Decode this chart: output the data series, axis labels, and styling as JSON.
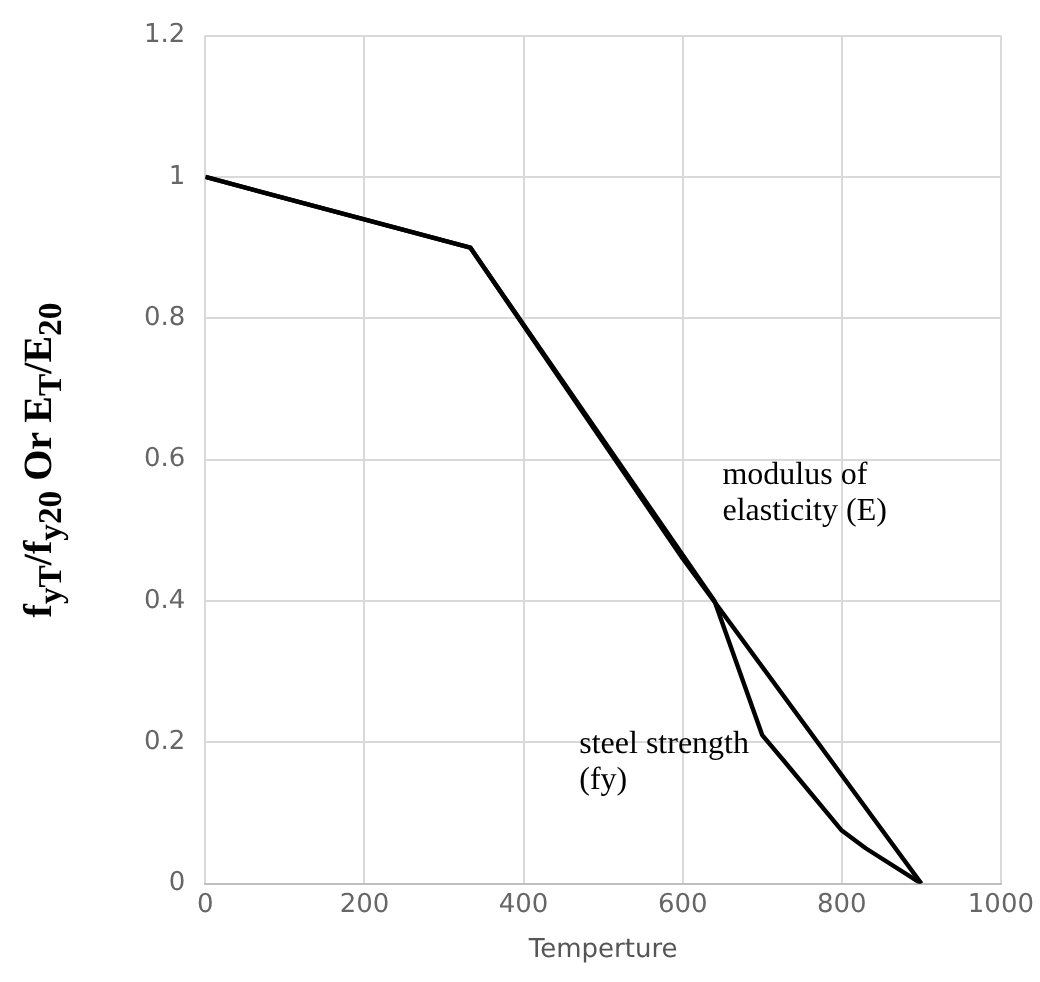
{
  "chart_data": {
    "type": "line",
    "xlabel": "Temperture",
    "ylabel": "f$_{yT}$/f$_{y20}$ Or E$_{T}$/E$_{20}$",
    "xlim": [
      0,
      1000
    ],
    "xticks": [
      0,
      200,
      400,
      600,
      800,
      1000
    ],
    "ylim": [
      0,
      1.2
    ],
    "yticks": [
      0,
      0.2,
      0.4,
      0.6,
      0.8,
      1,
      1.2
    ],
    "grid": true,
    "marker": "none",
    "line_style": "solid",
    "series": [
      {
        "name": "modulus of elasticity (E)",
        "color": "#000000",
        "x": [
          0,
          333,
          600,
          900
        ],
        "values": [
          1,
          0.9,
          0.46,
          0
        ]
      },
      {
        "name": "steel strength (fy)",
        "color": "#000000",
        "x": [
          0,
          333,
          640,
          700,
          730,
          800,
          830,
          900
        ],
        "values": [
          1,
          0.9,
          0.4,
          0.21,
          0.17,
          0.075,
          0.05,
          0
        ]
      }
    ]
  }
}
